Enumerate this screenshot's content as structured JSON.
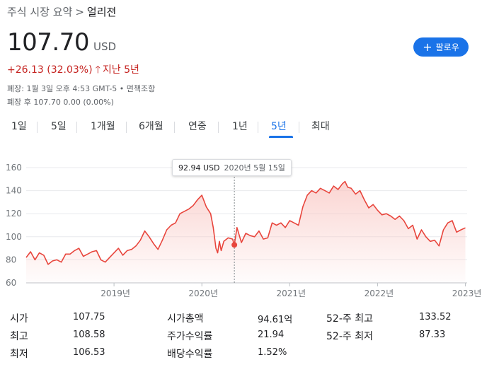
{
  "breadcrumb": {
    "parent": "주식 시장 요약",
    "separator": ">",
    "current": "얼리젼"
  },
  "quote": {
    "price": "107.70",
    "currency": "USD",
    "change": "+26.13 (32.03%)",
    "period": "지난 5년",
    "closed_note": "폐장: 1월 3일 오후 4:53 GMT-5 • 면책조항",
    "after_hours": "폐장 후 107.70 0.00 (0.00%)"
  },
  "follow_button": {
    "label": "팔로우"
  },
  "tabs": [
    {
      "label": "1일",
      "active": false
    },
    {
      "label": "5일",
      "active": false
    },
    {
      "label": "1개월",
      "active": false
    },
    {
      "label": "6개월",
      "active": false
    },
    {
      "label": "연중",
      "active": false
    },
    {
      "label": "1년",
      "active": false
    },
    {
      "label": "5년",
      "active": true
    },
    {
      "label": "최대",
      "active": false
    }
  ],
  "tooltip": {
    "value": "92.94 USD",
    "date": "2020년 5월 15일"
  },
  "colors": {
    "line": "#e8453c",
    "fill_top": "#f9c7c3",
    "accent": "#1a73e8",
    "negative": "#c5221f"
  },
  "chart_data": {
    "type": "area",
    "y_ticks": [
      "60",
      "80",
      "100",
      "120",
      "140",
      "160"
    ],
    "x_ticks": [
      "2019년",
      "2020년",
      "2021년",
      "2022년",
      "2023년"
    ],
    "ylim": [
      60,
      160
    ],
    "xlim": [
      2018.0,
      2023.02
    ],
    "grid": true,
    "highlight": {
      "x": 2020.37,
      "y": 92.94
    },
    "series": [
      {
        "x": [
          2018.0,
          2018.05,
          2018.1,
          2018.15,
          2018.2,
          2018.25,
          2018.3,
          2018.35,
          2018.4,
          2018.45,
          2018.5,
          2018.55,
          2018.6,
          2018.65,
          2018.7,
          2018.75,
          2018.8,
          2018.85,
          2018.9,
          2018.95,
          2019.0,
          2019.05,
          2019.1,
          2019.15,
          2019.2,
          2019.25,
          2019.3,
          2019.35,
          2019.4,
          2019.45,
          2019.5,
          2019.55,
          2019.6,
          2019.65,
          2019.7,
          2019.75,
          2019.8,
          2019.85,
          2019.9,
          2019.95,
          2020.0,
          2020.05,
          2020.1,
          2020.13,
          2020.16,
          2020.18,
          2020.2,
          2020.22,
          2020.25,
          2020.3,
          2020.35,
          2020.37,
          2020.4,
          2020.45,
          2020.5,
          2020.55,
          2020.6,
          2020.65,
          2020.7,
          2020.75,
          2020.8,
          2020.85,
          2020.9,
          2020.95,
          2021.0,
          2021.05,
          2021.1,
          2021.15,
          2021.2,
          2021.25,
          2021.3,
          2021.35,
          2021.4,
          2021.45,
          2021.5,
          2021.55,
          2021.6,
          2021.63,
          2021.66,
          2021.7,
          2021.75,
          2021.8,
          2021.85,
          2021.9,
          2021.95,
          2022.0,
          2022.05,
          2022.1,
          2022.15,
          2022.2,
          2022.25,
          2022.3,
          2022.35,
          2022.4,
          2022.45,
          2022.5,
          2022.55,
          2022.6,
          2022.65,
          2022.7,
          2022.75,
          2022.8,
          2022.85,
          2022.9,
          2022.95,
          2023.0
        ],
        "y": [
          82,
          87,
          80,
          86,
          84,
          76,
          79,
          80,
          78,
          85,
          85,
          88,
          90,
          83,
          85,
          87,
          88,
          80,
          78,
          82,
          86,
          90,
          84,
          88,
          89,
          92,
          97,
          105,
          100,
          94,
          89,
          97,
          106,
          110,
          112,
          120,
          122,
          124,
          127,
          132,
          136,
          126,
          120,
          108,
          90,
          86,
          96,
          88,
          96,
          99,
          98,
          92.94,
          108,
          95,
          103,
          101,
          100,
          105,
          98,
          99,
          112,
          110,
          112,
          108,
          114,
          112,
          110,
          126,
          136,
          140,
          138,
          142,
          140,
          138,
          144,
          141,
          146,
          148,
          143,
          142,
          137,
          140,
          132,
          125,
          128,
          123,
          119,
          120,
          118,
          115,
          118,
          114,
          107,
          110,
          98,
          106,
          100,
          96,
          97,
          92,
          106,
          112,
          114,
          104,
          106,
          107.7
        ]
      }
    ]
  },
  "stats": [
    {
      "label": "시가",
      "value": "107.75"
    },
    {
      "label": "최고",
      "value": "108.58"
    },
    {
      "label": "최저",
      "value": "106.53"
    },
    {
      "label": "시가총액",
      "value": "94.61억"
    },
    {
      "label": "주가수익률",
      "value": "21.94"
    },
    {
      "label": "배당수익률",
      "value": "1.52%"
    },
    {
      "label": "52-주 최고",
      "value": "133.52"
    },
    {
      "label": "52-주 최저",
      "value": "87.33"
    }
  ]
}
